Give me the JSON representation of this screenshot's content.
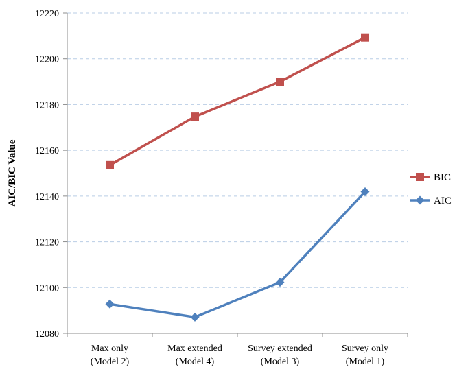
{
  "chart_data": {
    "type": "line",
    "title": "",
    "xlabel": "",
    "ylabel": "AIC/BIC Value",
    "ylim": [
      12080,
      12220
    ],
    "yticks": [
      12080,
      12100,
      12120,
      12140,
      12160,
      12180,
      12200,
      12220
    ],
    "grid": "horizontal-dashed",
    "legend": "right",
    "categories": [
      [
        "Max only",
        "(Model 2)"
      ],
      [
        "Max extended",
        "(Model 4)"
      ],
      [
        "Survey extended",
        "(Model 3)"
      ],
      [
        "Survey only",
        "(Model 1)"
      ]
    ],
    "series": [
      {
        "name": "BIC",
        "values": [
          12153.5,
          12174.7,
          12190.0,
          12209.3
        ],
        "color": "#c0504d",
        "marker": "square"
      },
      {
        "name": "AIC",
        "values": [
          12092.8,
          12087.1,
          12102.3,
          12141.9
        ],
        "color": "#4f81bd",
        "marker": "diamond"
      }
    ]
  }
}
